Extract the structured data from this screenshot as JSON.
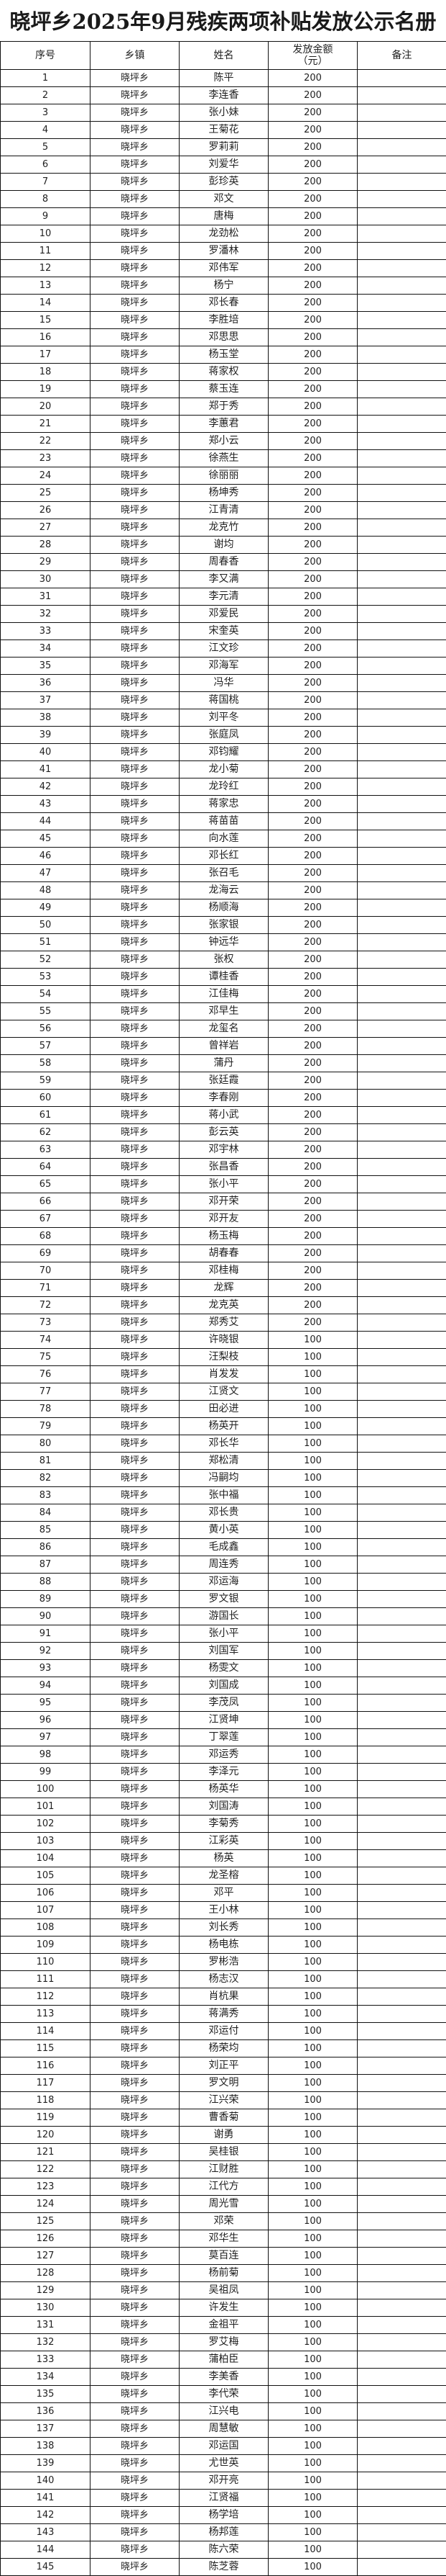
{
  "title": "晓坪乡2025年9月残疾两项补贴发放公示名册",
  "headers": {
    "no": "序号",
    "town": "乡镇",
    "name": "姓名",
    "amount_line1": "发放金额",
    "amount_line2": "（元）",
    "note": "备注"
  },
  "township": "晓坪乡",
  "rows": [
    [
      "陈平",
      200
    ],
    [
      "李连香",
      200
    ],
    [
      "张小妹",
      200
    ],
    [
      "王菊花",
      200
    ],
    [
      "罗莉莉",
      200
    ],
    [
      "刘爱华",
      200
    ],
    [
      "彭珍英",
      200
    ],
    [
      "邓文",
      200
    ],
    [
      "唐梅",
      200
    ],
    [
      "龙劲松",
      200
    ],
    [
      "罗潘林",
      200
    ],
    [
      "邓伟军",
      200
    ],
    [
      "杨宁",
      200
    ],
    [
      "邓长春",
      200
    ],
    [
      "李胜培",
      200
    ],
    [
      "邓思思",
      200
    ],
    [
      "杨玉堂",
      200
    ],
    [
      "蒋家权",
      200
    ],
    [
      "蔡玉连",
      200
    ],
    [
      "郑于秀",
      200
    ],
    [
      "李蕙君",
      200
    ],
    [
      "郑小云",
      200
    ],
    [
      "徐燕生",
      200
    ],
    [
      "徐丽丽",
      200
    ],
    [
      "杨坤秀",
      200
    ],
    [
      "江青清",
      200
    ],
    [
      "龙克竹",
      200
    ],
    [
      "谢均",
      200
    ],
    [
      "周春香",
      200
    ],
    [
      "李又满",
      200
    ],
    [
      "李元清",
      200
    ],
    [
      "邓爱民",
      200
    ],
    [
      "宋奎英",
      200
    ],
    [
      "江文珍",
      200
    ],
    [
      "邓海军",
      200
    ],
    [
      "冯华",
      200
    ],
    [
      "蒋国桃",
      200
    ],
    [
      "刘平冬",
      200
    ],
    [
      "张庭凤",
      200
    ],
    [
      "邓钧耀",
      200
    ],
    [
      "龙小菊",
      200
    ],
    [
      "龙玲红",
      200
    ],
    [
      "蒋家忠",
      200
    ],
    [
      "蒋苗苗",
      200
    ],
    [
      "向水莲",
      200
    ],
    [
      "邓长红",
      200
    ],
    [
      "张召毛",
      200
    ],
    [
      "龙海云",
      200
    ],
    [
      "杨顺海",
      200
    ],
    [
      "张家银",
      200
    ],
    [
      "钟远华",
      200
    ],
    [
      "张权",
      200
    ],
    [
      "谭桂香",
      200
    ],
    [
      "江佳梅",
      200
    ],
    [
      "邓早生",
      200
    ],
    [
      "龙玺名",
      200
    ],
    [
      "曾祥岩",
      200
    ],
    [
      "蒲丹",
      200
    ],
    [
      "张廷霞",
      200
    ],
    [
      "李春刚",
      200
    ],
    [
      "蒋小武",
      200
    ],
    [
      "彭云英",
      200
    ],
    [
      "邓宇林",
      200
    ],
    [
      "张昌香",
      200
    ],
    [
      "张小平",
      200
    ],
    [
      "邓开荣",
      200
    ],
    [
      "邓开友",
      200
    ],
    [
      "杨玉梅",
      200
    ],
    [
      "胡春春",
      200
    ],
    [
      "邓桂梅",
      200
    ],
    [
      "龙辉",
      200
    ],
    [
      "龙克英",
      200
    ],
    [
      "郑秀艾",
      200
    ],
    [
      "许晓银",
      100
    ],
    [
      "汪梨枝",
      100
    ],
    [
      "肖发发",
      100
    ],
    [
      "江贤文",
      100
    ],
    [
      "田必进",
      100
    ],
    [
      "杨英开",
      100
    ],
    [
      "邓长华",
      100
    ],
    [
      "郑松清",
      100
    ],
    [
      "冯嗣均",
      100
    ],
    [
      "张中福",
      100
    ],
    [
      "邓长贵",
      100
    ],
    [
      "黄小英",
      100
    ],
    [
      "毛成鑫",
      100
    ],
    [
      "周连秀",
      100
    ],
    [
      "邓运海",
      100
    ],
    [
      "罗文银",
      100
    ],
    [
      "游国长",
      100
    ],
    [
      "张小平",
      100
    ],
    [
      "刘国军",
      100
    ],
    [
      "杨雯文",
      100
    ],
    [
      "刘国成",
      100
    ],
    [
      "李茂凤",
      100
    ],
    [
      "江贤坤",
      100
    ],
    [
      "丁翠莲",
      100
    ],
    [
      "邓运秀",
      100
    ],
    [
      "李泽元",
      100
    ],
    [
      "杨英华",
      100
    ],
    [
      "刘国涛",
      100
    ],
    [
      "李菊秀",
      100
    ],
    [
      "江彩英",
      100
    ],
    [
      "杨英",
      100
    ],
    [
      "龙圣榕",
      100
    ],
    [
      "邓平",
      100
    ],
    [
      "王小林",
      100
    ],
    [
      "刘长秀",
      100
    ],
    [
      "杨电栋",
      100
    ],
    [
      "罗彬浩",
      100
    ],
    [
      "杨志汉",
      100
    ],
    [
      "肖杭果",
      100
    ],
    [
      "蒋满秀",
      100
    ],
    [
      "邓运付",
      100
    ],
    [
      "杨荣均",
      100
    ],
    [
      "刘正平",
      100
    ],
    [
      "罗文明",
      100
    ],
    [
      "江兴荣",
      100
    ],
    [
      "曹香菊",
      100
    ],
    [
      "谢勇",
      100
    ],
    [
      "吴桂银",
      100
    ],
    [
      "江财胜",
      100
    ],
    [
      "江代方",
      100
    ],
    [
      "周光雪",
      100
    ],
    [
      "邓荣",
      100
    ],
    [
      "邓华生",
      100
    ],
    [
      "莫百连",
      100
    ],
    [
      "杨前菊",
      100
    ],
    [
      "吴祖凤",
      100
    ],
    [
      "许发生",
      100
    ],
    [
      "金祖平",
      100
    ],
    [
      "罗艾梅",
      100
    ],
    [
      "蒲柏臣",
      100
    ],
    [
      "李美香",
      100
    ],
    [
      "李代荣",
      100
    ],
    [
      "江兴电",
      100
    ],
    [
      "周慧敏",
      100
    ],
    [
      "邓运国",
      100
    ],
    [
      "尤世英",
      100
    ],
    [
      "邓开亮",
      100
    ],
    [
      "江贤福",
      100
    ],
    [
      "杨学培",
      100
    ],
    [
      "杨邦莲",
      100
    ],
    [
      "陈六荣",
      100
    ],
    [
      "陈芝蓉",
      100
    ]
  ]
}
